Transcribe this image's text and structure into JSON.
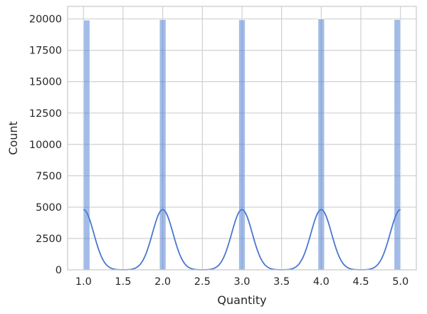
{
  "chart_data": {
    "type": "bar",
    "style": "histogram-with-kde",
    "xlabel": "Quantity",
    "ylabel": "Count",
    "xlim": [
      0.8,
      5.2
    ],
    "ylim": [
      0,
      21000
    ],
    "x_ticks": [
      "1.0",
      "1.5",
      "2.0",
      "2.5",
      "3.0",
      "3.5",
      "4.0",
      "4.5",
      "5.0"
    ],
    "x_tick_values": [
      1.0,
      1.5,
      2.0,
      2.5,
      3.0,
      3.5,
      4.0,
      4.5,
      5.0
    ],
    "y_ticks": [
      "0",
      "2500",
      "5000",
      "7500",
      "10000",
      "12500",
      "15000",
      "17500",
      "20000"
    ],
    "y_tick_values": [
      0,
      2500,
      5000,
      7500,
      10000,
      12500,
      15000,
      17500,
      20000
    ],
    "bins": [
      {
        "x_start": 1.0,
        "x_end": 1.08,
        "count": 19900
      },
      {
        "x_start": 1.96,
        "x_end": 2.04,
        "count": 19950
      },
      {
        "x_start": 2.96,
        "x_end": 3.04,
        "count": 19930
      },
      {
        "x_start": 3.96,
        "x_end": 4.04,
        "count": 20000
      },
      {
        "x_start": 4.92,
        "x_end": 5.0,
        "count": 19950
      }
    ],
    "kde": {
      "peaks": [
        1.0,
        2.0,
        3.0,
        4.0,
        5.0
      ],
      "peak_count": 4800
    },
    "grid": true,
    "legend": "none",
    "colors": {
      "bar": "#4878d0",
      "line": "#4878d0",
      "grid": "#cccccc"
    }
  }
}
